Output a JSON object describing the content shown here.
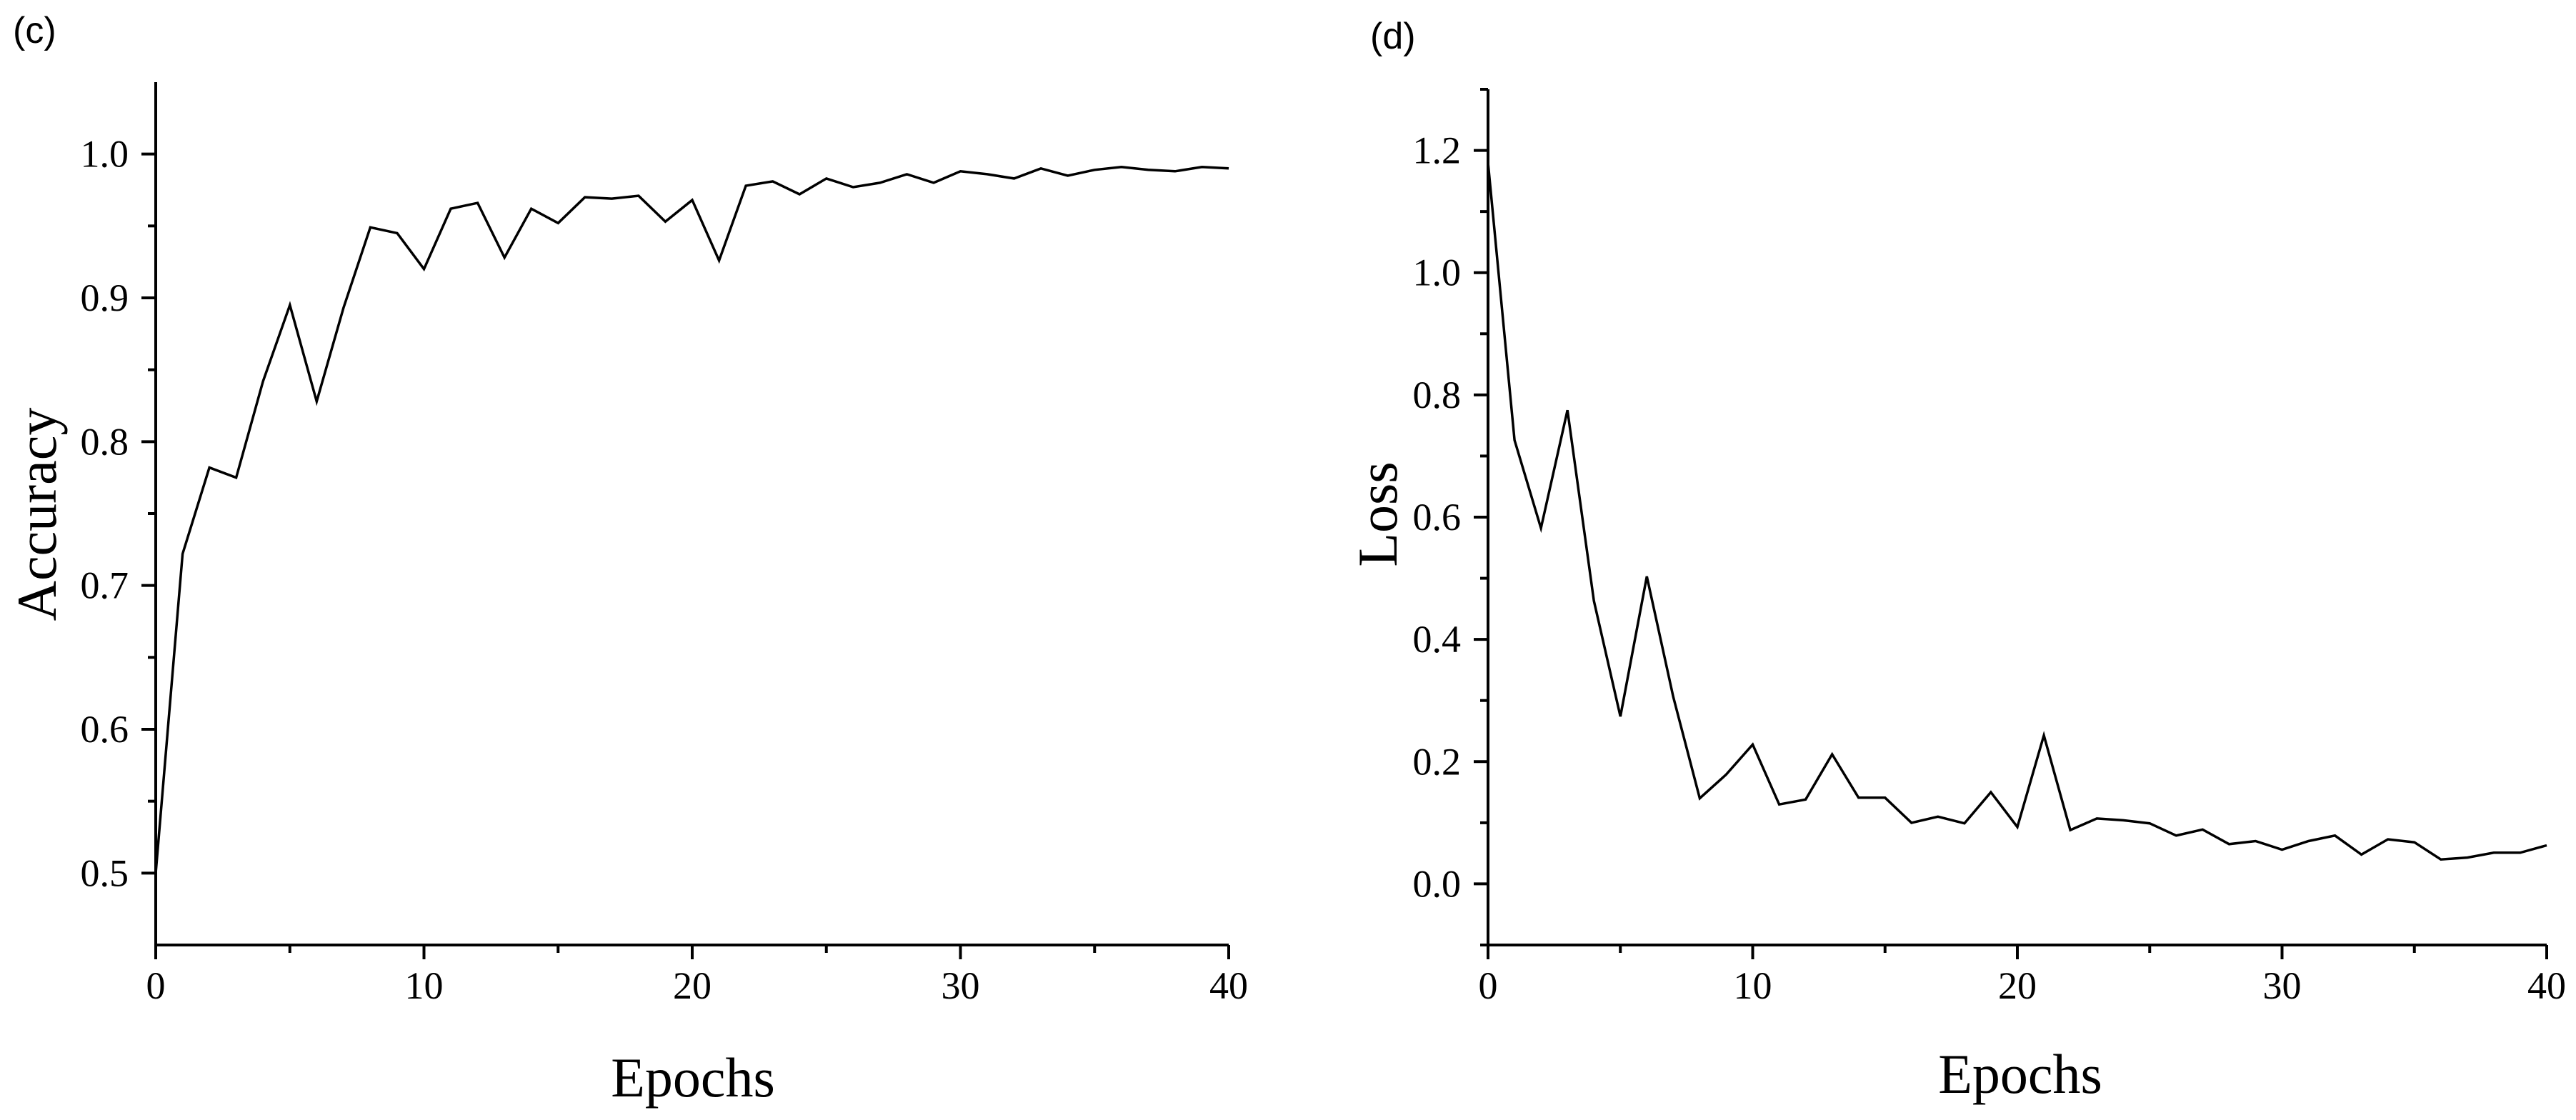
{
  "chart_data": [
    {
      "type": "line",
      "panel_label": "(c)",
      "title": "",
      "xlabel": "Epochs",
      "ylabel": "Accuracy",
      "xlim": [
        0,
        40
      ],
      "ylim": [
        0.45,
        1.05
      ],
      "xticks": [
        0,
        10,
        20,
        30,
        40
      ],
      "xtick_labels": [
        "0",
        "10",
        "20",
        "30",
        "40"
      ],
      "xminor": [
        5,
        15,
        25,
        35
      ],
      "yticks": [
        0.5,
        0.6,
        0.7,
        0.8,
        0.9,
        1.0
      ],
      "ytick_labels": [
        "0.5",
        "0.6",
        "0.7",
        "0.8",
        "0.9",
        "1.0"
      ],
      "yminor": [
        0.55,
        0.65,
        0.75,
        0.85,
        0.95
      ],
      "grid": false,
      "series": [
        {
          "color": "#000000",
          "x": [
            0,
            1,
            2,
            3,
            4,
            5,
            6,
            7,
            8,
            9,
            10,
            11,
            12,
            13,
            14,
            15,
            16,
            17,
            18,
            19,
            20,
            21,
            22,
            23,
            24,
            25,
            26,
            27,
            28,
            29,
            30,
            31,
            32,
            33,
            34,
            35,
            36,
            37,
            38,
            39,
            40
          ],
          "y": [
            0.5,
            0.722,
            0.782,
            0.775,
            0.842,
            0.895,
            0.828,
            0.893,
            0.949,
            0.945,
            0.92,
            0.962,
            0.966,
            0.928,
            0.962,
            0.952,
            0.97,
            0.969,
            0.971,
            0.953,
            0.968,
            0.926,
            0.978,
            0.981,
            0.972,
            0.983,
            0.977,
            0.98,
            0.986,
            0.98,
            0.988,
            0.986,
            0.983,
            0.99,
            0.985,
            0.989,
            0.991,
            0.989,
            0.988,
            0.991,
            0.99
          ]
        }
      ]
    },
    {
      "type": "line",
      "panel_label": "(d)",
      "title": "",
      "xlabel": "Epochs",
      "ylabel": "Loss",
      "xlim": [
        0,
        40
      ],
      "ylim": [
        -0.1,
        1.3
      ],
      "xticks": [
        0,
        10,
        20,
        30,
        40
      ],
      "xtick_labels": [
        "0",
        "10",
        "20",
        "30",
        "40"
      ],
      "xminor": [
        5,
        15,
        25,
        35
      ],
      "yticks": [
        0.0,
        0.2,
        0.4,
        0.6,
        0.8,
        1.0,
        1.2
      ],
      "ytick_labels": [
        "0.0",
        "0.2",
        "0.4",
        "0.6",
        "0.8",
        "1.0",
        "1.2"
      ],
      "yminor": [
        -0.1,
        0.1,
        0.3,
        0.5,
        0.7,
        0.9,
        1.1,
        1.3
      ],
      "grid": false,
      "series": [
        {
          "color": "#000000",
          "x": [
            0,
            1,
            2,
            3,
            4,
            5,
            6,
            7,
            8,
            9,
            10,
            11,
            12,
            13,
            14,
            15,
            16,
            17,
            18,
            19,
            20,
            21,
            22,
            23,
            24,
            25,
            26,
            27,
            28,
            29,
            30,
            31,
            32,
            33,
            34,
            35,
            36,
            37,
            38,
            39,
            40
          ],
          "y": [
            1.18,
            0.726,
            0.582,
            0.775,
            0.463,
            0.274,
            0.503,
            0.306,
            0.14,
            0.179,
            0.228,
            0.13,
            0.138,
            0.212,
            0.141,
            0.141,
            0.1,
            0.11,
            0.099,
            0.15,
            0.093,
            0.243,
            0.088,
            0.107,
            0.104,
            0.099,
            0.079,
            0.089,
            0.065,
            0.07,
            0.056,
            0.07,
            0.079,
            0.048,
            0.073,
            0.068,
            0.04,
            0.043,
            0.051,
            0.051,
            0.063
          ]
        }
      ]
    }
  ]
}
